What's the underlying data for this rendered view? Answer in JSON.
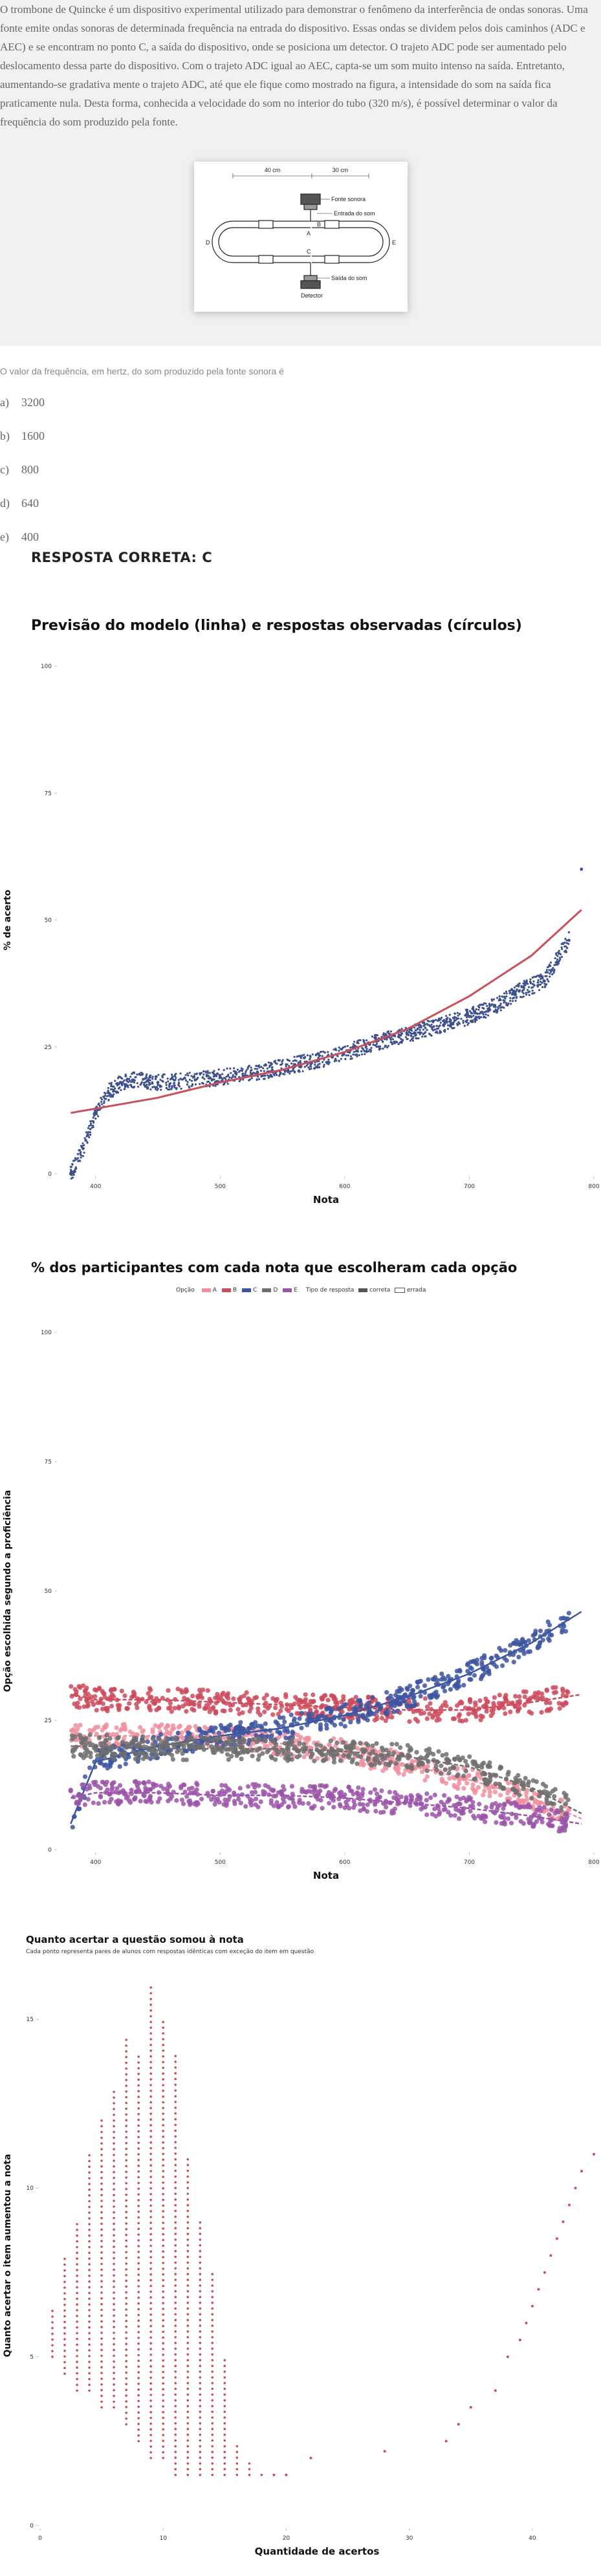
{
  "question": {
    "text": "O trombone de Quincke é um dispositivo experimental utilizado para demonstrar o fenômeno da interferência de ondas sonoras. Uma fonte emite ondas sonoras de determinada frequência na entrada do dispositivo. Essas ondas se dividem pelos dois caminhos (ADC e AEC) e se encontram no ponto C, a saída do dispositivo, onde se posiciona um detector. O trajeto ADC pode ser aumentado pelo deslocamento dessa parte do dispositivo. Com o trajeto ADC igual ao AEC, capta-se um som muito intenso na saída. Entretanto, aumentando-se gradativa mente o trajeto ADC, até que ele fique como mostrado na figura, a intensidade do som na saída fica praticamente nula. Desta forma, conhecida a velocidade do som no interior do tubo (320 m/s), é possível determinar o valor da frequência do som produzido pela fonte.",
    "figure": {
      "dim_left": "40 cm",
      "dim_right": "30 cm",
      "fonte": "Fonte sonora",
      "entrada": "Entrada do som",
      "saida": "Saída do som",
      "detector": "Detector",
      "A": "A",
      "B": "B",
      "C": "C",
      "D": "D",
      "E": "E"
    },
    "prompt": "O valor da frequência, em hertz, do som produzido pela fonte sonora é",
    "options": [
      {
        "letter": "a)",
        "value": "3200"
      },
      {
        "letter": "b)",
        "value": "1600"
      },
      {
        "letter": "c)",
        "value": "800"
      },
      {
        "letter": "d)",
        "value": "640"
      },
      {
        "letter": "e)",
        "value": "400"
      }
    ],
    "answer": "RESPOSTA CORRETA: C"
  },
  "chart_data": [
    {
      "type": "scatter",
      "title": "Previsão do modelo (linha) e respostas observadas (círculos)",
      "xlabel": "Nota",
      "ylabel": "% de acerto",
      "xlim": [
        370,
        800
      ],
      "ylim": [
        0,
        100
      ],
      "xticks": [
        "400",
        "500",
        "600",
        "700",
        "800"
      ],
      "yticks": [
        "0",
        "25",
        "50",
        "75",
        "100"
      ],
      "model_curve": {
        "x": [
          380,
          450,
          500,
          550,
          600,
          650,
          700,
          750,
          790
        ],
        "y": [
          12,
          15,
          18,
          20.5,
          24,
          28.5,
          35,
          43,
          52
        ]
      },
      "observed": {
        "x": [
          380,
          390,
          400,
          410,
          420,
          430,
          450,
          480,
          500,
          530,
          560,
          590,
          620,
          650,
          680,
          700,
          720,
          740,
          760,
          780,
          790
        ],
        "y": [
          0,
          5,
          12,
          16,
          18,
          18.5,
          18,
          18.5,
          19,
          20,
          21.5,
          23,
          25.5,
          27.5,
          29.5,
          31,
          33,
          36,
          38,
          46,
          60
        ]
      },
      "series_colors": {
        "model": "#c8505a",
        "observed": "#3d4f8c"
      }
    },
    {
      "type": "scatter",
      "title": "% dos participantes com cada nota que escolheram cada opção",
      "xlabel": "Nota",
      "ylabel": "Opção escolhida segundo a proficiência",
      "legend_title_option": "Opção",
      "legend_title_type": "Tipo de resposta",
      "legend_correct": "correta",
      "legend_wrong": "errada",
      "xlim": [
        370,
        800
      ],
      "ylim": [
        0,
        100
      ],
      "xticks": [
        "400",
        "500",
        "600",
        "700",
        "800"
      ],
      "yticks": [
        "0",
        "25",
        "50",
        "75",
        "100"
      ],
      "x": [
        380,
        400,
        450,
        500,
        550,
        600,
        650,
        700,
        750,
        790
      ],
      "series": [
        {
          "name": "A",
          "color": "#f08f9e",
          "values": [
            22,
            22,
            22,
            21.5,
            20.5,
            19,
            16.5,
            13.5,
            10,
            6
          ]
        },
        {
          "name": "B",
          "color": "#cc4a5c",
          "values": [
            30,
            29,
            29,
            28.5,
            28,
            27.5,
            27,
            27,
            28.5,
            30
          ]
        },
        {
          "name": "C",
          "color": "#3d55a0",
          "values": [
            5,
            17,
            20,
            22,
            23.5,
            26,
            29.5,
            34,
            40,
            46
          ]
        },
        {
          "name": "D",
          "color": "#6e6e6e",
          "values": [
            20,
            20,
            19.5,
            19.5,
            19.5,
            19,
            18,
            16,
            12,
            7
          ]
        },
        {
          "name": "E",
          "color": "#9b55a8",
          "values": [
            10,
            11,
            11,
            10.5,
            10.5,
            10,
            9,
            8,
            6.5,
            5
          ]
        }
      ]
    },
    {
      "type": "scatter",
      "title": "Quanto acertar a questão somou à nota",
      "subtitle": "Cada ponto representa pares de alunos com respostas idênticas com exceção do item em questão",
      "xlabel": "Quantidade de acertos",
      "ylabel": "Quanto acertar o item aumentou a nota",
      "xlim": [
        0,
        45
      ],
      "ylim": [
        0,
        16
      ],
      "xticks": [
        "0",
        "10",
        "20",
        "30",
        "40"
      ],
      "yticks": [
        "0",
        "5",
        "10",
        "15"
      ],
      "color": "#c8505a",
      "columns": [
        {
          "x": 1,
          "min": 5,
          "max": 6.5
        },
        {
          "x": 2,
          "min": 4.5,
          "max": 8
        },
        {
          "x": 3,
          "min": 4,
          "max": 9
        },
        {
          "x": 4,
          "min": 4,
          "max": 11
        },
        {
          "x": 5,
          "min": 3.5,
          "max": 12
        },
        {
          "x": 6,
          "min": 3.5,
          "max": 13
        },
        {
          "x": 7,
          "min": 3,
          "max": 14.5
        },
        {
          "x": 8,
          "min": 2.5,
          "max": 14
        },
        {
          "x": 9,
          "min": 2,
          "max": 16
        },
        {
          "x": 10,
          "min": 2,
          "max": 15
        },
        {
          "x": 11,
          "min": 1.5,
          "max": 14
        },
        {
          "x": 12,
          "min": 1.5,
          "max": 11
        },
        {
          "x": 13,
          "min": 1.5,
          "max": 9
        },
        {
          "x": 14,
          "min": 1.5,
          "max": 7.5
        },
        {
          "x": 15,
          "min": 1.5,
          "max": 5
        },
        {
          "x": 16,
          "min": 1.5,
          "max": 2.5
        },
        {
          "x": 17,
          "min": 1.5,
          "max": 2
        },
        {
          "x": 18,
          "min": 1.5,
          "max": 1.5
        }
      ],
      "scattered": {
        "x": [
          19,
          20,
          22,
          28,
          33,
          34,
          35,
          37,
          38,
          39,
          39.5,
          40,
          40.5,
          41,
          41.5,
          42,
          42.5,
          43,
          43.5,
          44,
          45
        ],
        "y": [
          1.5,
          1.5,
          2,
          2.2,
          2.5,
          3,
          3.5,
          4,
          5,
          5.5,
          6,
          6.5,
          7,
          7.5,
          8,
          8.5,
          9,
          9.5,
          10,
          10.5,
          11
        ]
      }
    }
  ]
}
